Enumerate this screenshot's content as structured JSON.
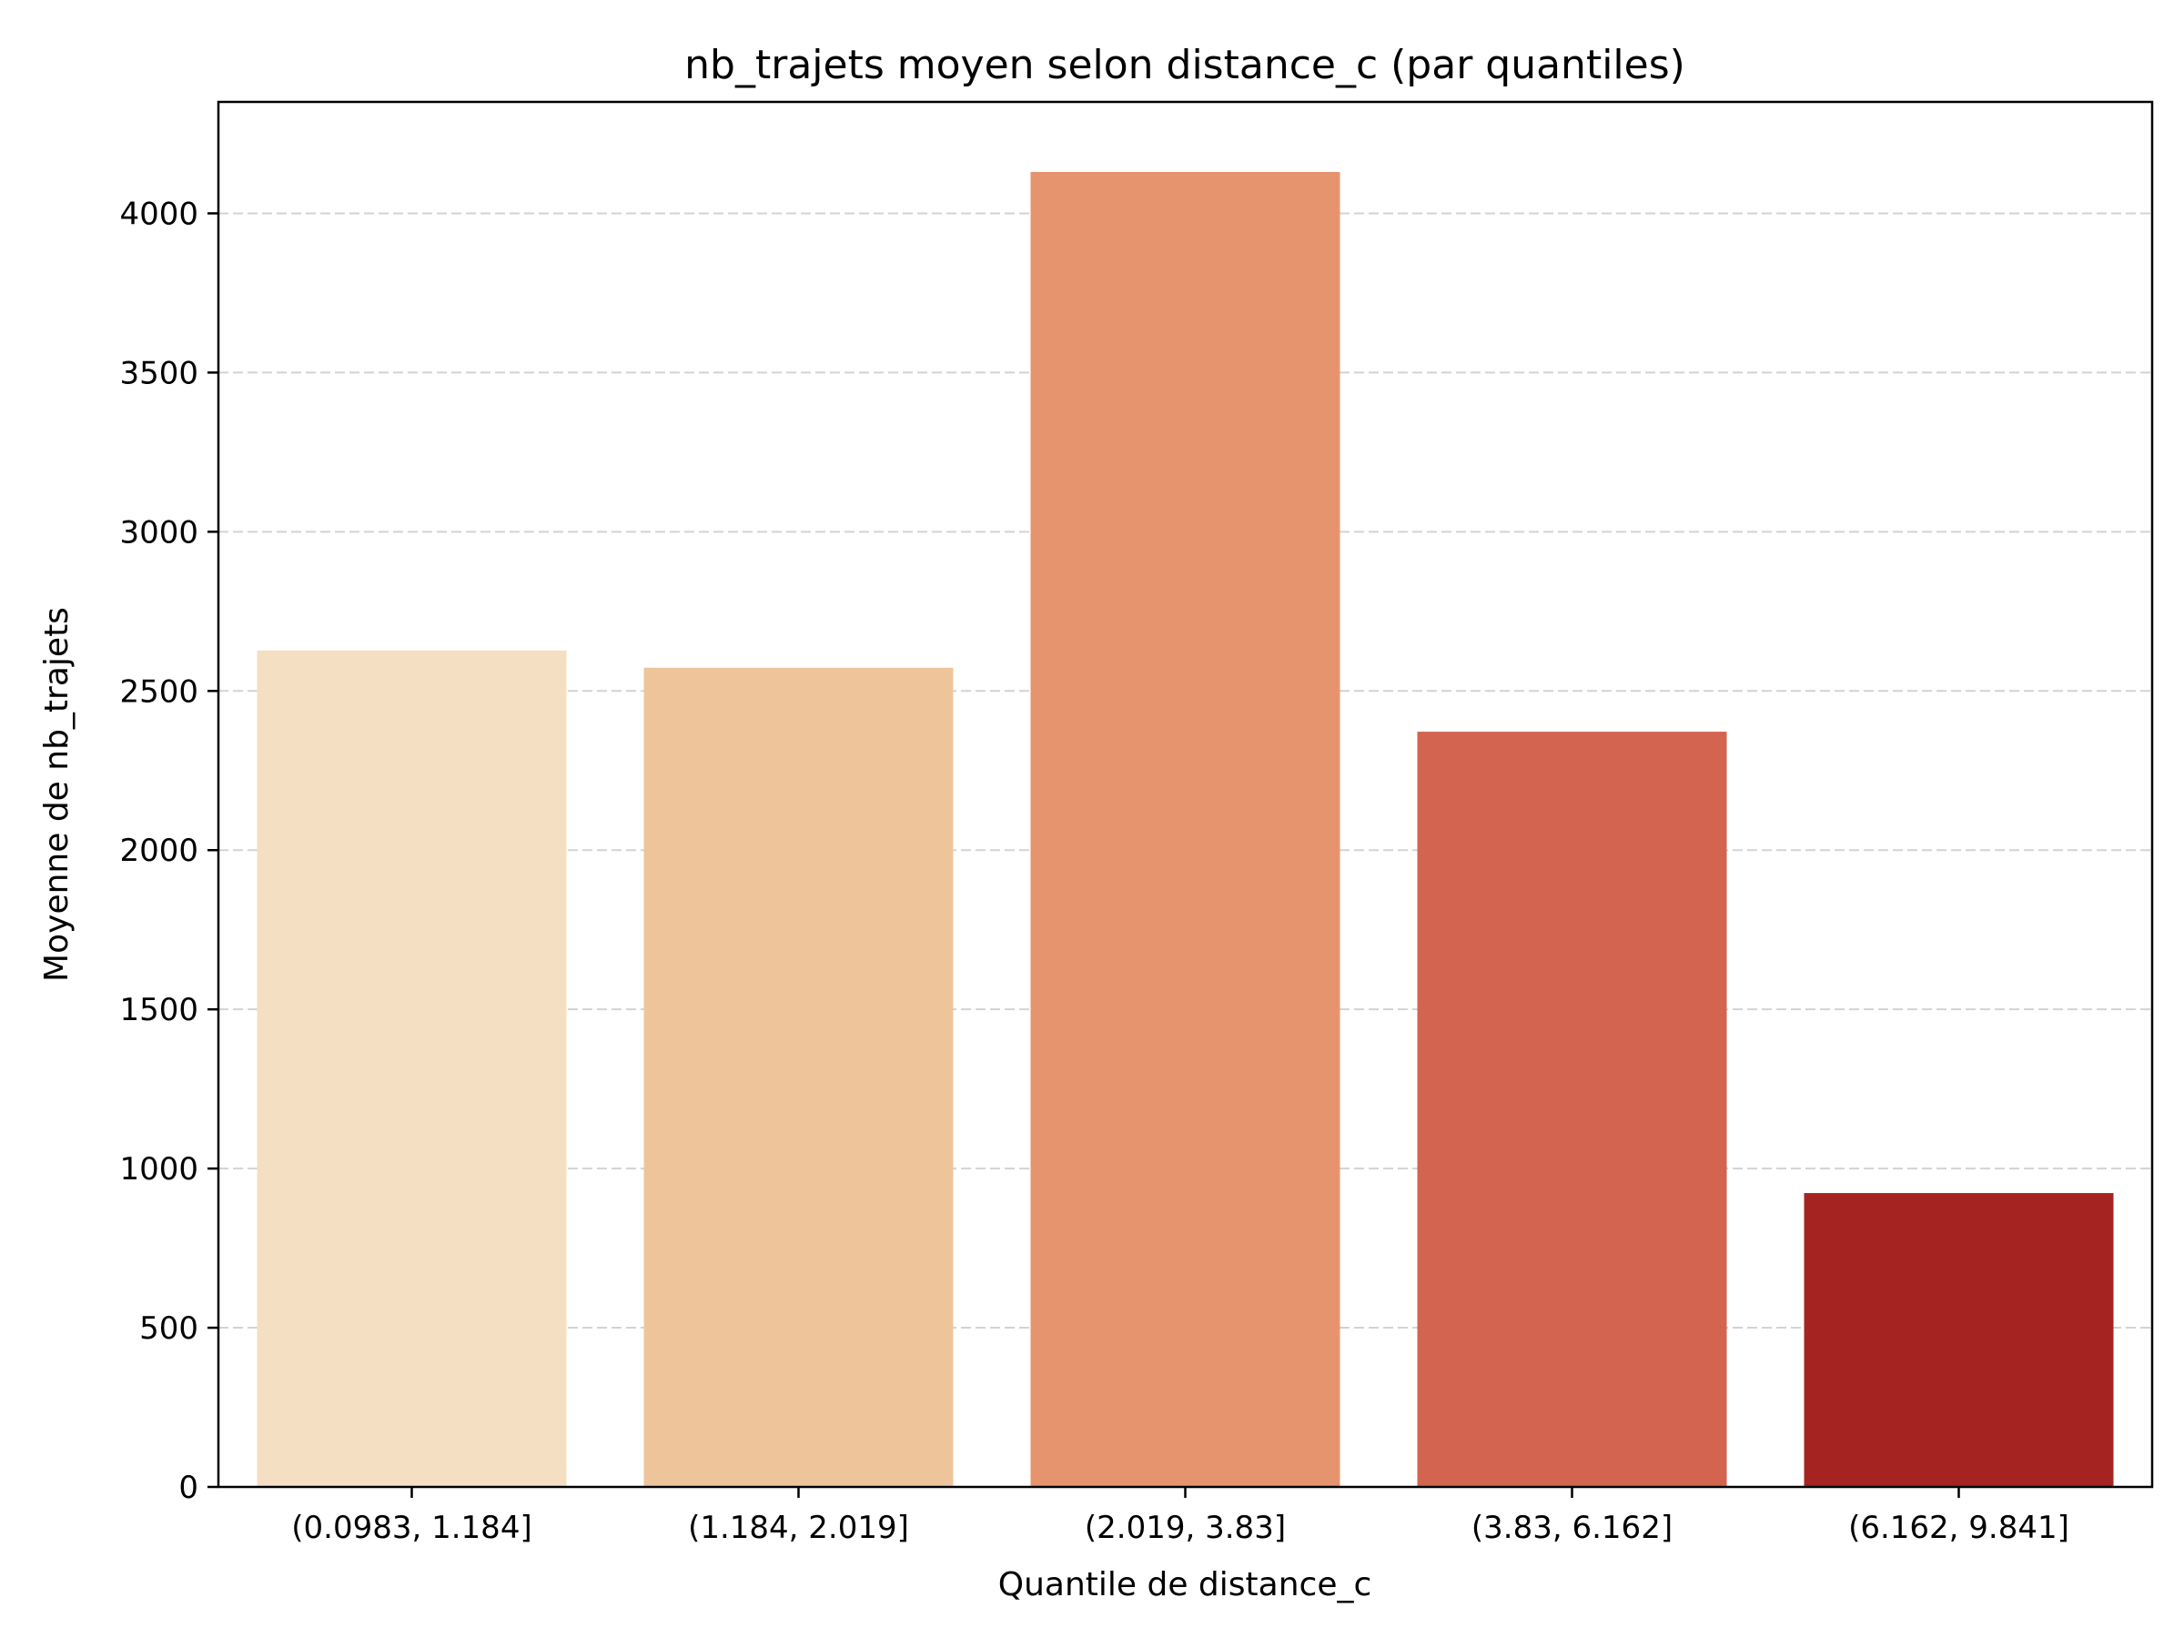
{
  "chart_data": {
    "type": "bar",
    "title": "nb_trajets moyen selon distance_c (par quantiles)",
    "xlabel": "Quantile de distance_c",
    "ylabel": "Moyenne de nb_trajets",
    "categories": [
      "(0.0983, 1.184]",
      "(1.184, 2.019]",
      "(2.019, 3.83]",
      "(3.83, 6.162]",
      "(6.162, 9.841]"
    ],
    "values": [
      2627,
      2573,
      4130,
      2372,
      923
    ],
    "colors": [
      "#f5dfc2",
      "#eec59b",
      "#e6946d",
      "#d26450",
      "#a52422"
    ],
    "ylim": [
      0,
      4350
    ],
    "yticks": [
      0,
      500,
      1000,
      1500,
      2000,
      2500,
      3000,
      3500,
      4000
    ],
    "grid": "y-dashed",
    "legend": "none"
  }
}
